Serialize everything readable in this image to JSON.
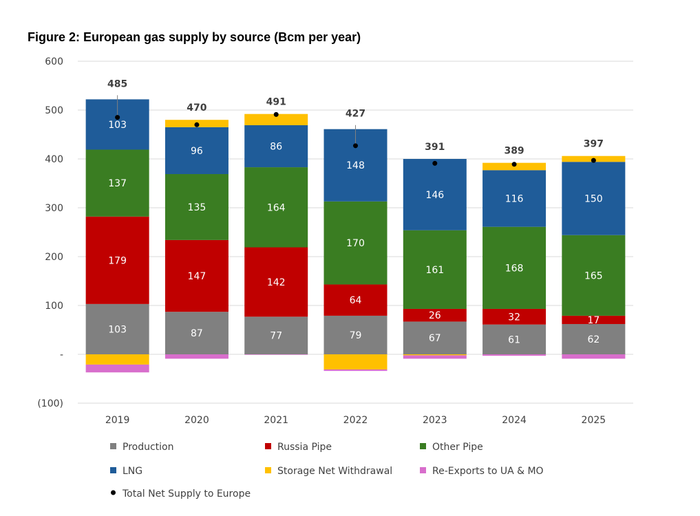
{
  "chart_data": {
    "type": "bar",
    "stacked": true,
    "title": "Figure 2: European gas supply by source (Bcm per year)",
    "xlabel": "",
    "ylabel": "",
    "ylim": [
      -100,
      600
    ],
    "y_ticks": [
      {
        "value": 600,
        "label": "600"
      },
      {
        "value": 500,
        "label": "500"
      },
      {
        "value": 400,
        "label": "400"
      },
      {
        "value": 300,
        "label": "300"
      },
      {
        "value": 200,
        "label": "200"
      },
      {
        "value": 100,
        "label": "100"
      },
      {
        "value": 0,
        "label": "-"
      },
      {
        "value": -100,
        "label": "(100)"
      }
    ],
    "grid": true,
    "legend_position": "bottom",
    "categories": [
      "2019",
      "2020",
      "2021",
      "2022",
      "2023",
      "2024",
      "2025"
    ],
    "series": [
      {
        "name": "Production",
        "color": "#808080",
        "values": [
          103,
          87,
          77,
          79,
          67,
          61,
          62
        ],
        "labeled": true
      },
      {
        "name": "Russia Pipe",
        "color": "#C00000",
        "values": [
          179,
          147,
          142,
          64,
          26,
          32,
          17
        ],
        "labeled": true
      },
      {
        "name": "Other Pipe",
        "color": "#3A7D22",
        "values": [
          137,
          135,
          164,
          170,
          161,
          168,
          165
        ],
        "labeled": true
      },
      {
        "name": "LNG",
        "color": "#1F5C99",
        "values": [
          103,
          96,
          86,
          148,
          146,
          116,
          150
        ],
        "labeled": true
      },
      {
        "name": "Storage Net Withdrawal",
        "color": "#FFC000",
        "values": [
          -21,
          15,
          23,
          -31,
          -2,
          15,
          12
        ],
        "labeled": false
      },
      {
        "name": "Re-Exports to UA & MO",
        "color": "#D86ECC",
        "values": [
          -16,
          -9,
          -1,
          -3,
          -7,
          -3,
          -9
        ],
        "labeled": false
      }
    ],
    "total_series": {
      "name": "Total Net Supply to Europe",
      "color": "#000000",
      "values": [
        485,
        470,
        491,
        427,
        391,
        389,
        397
      ]
    }
  }
}
